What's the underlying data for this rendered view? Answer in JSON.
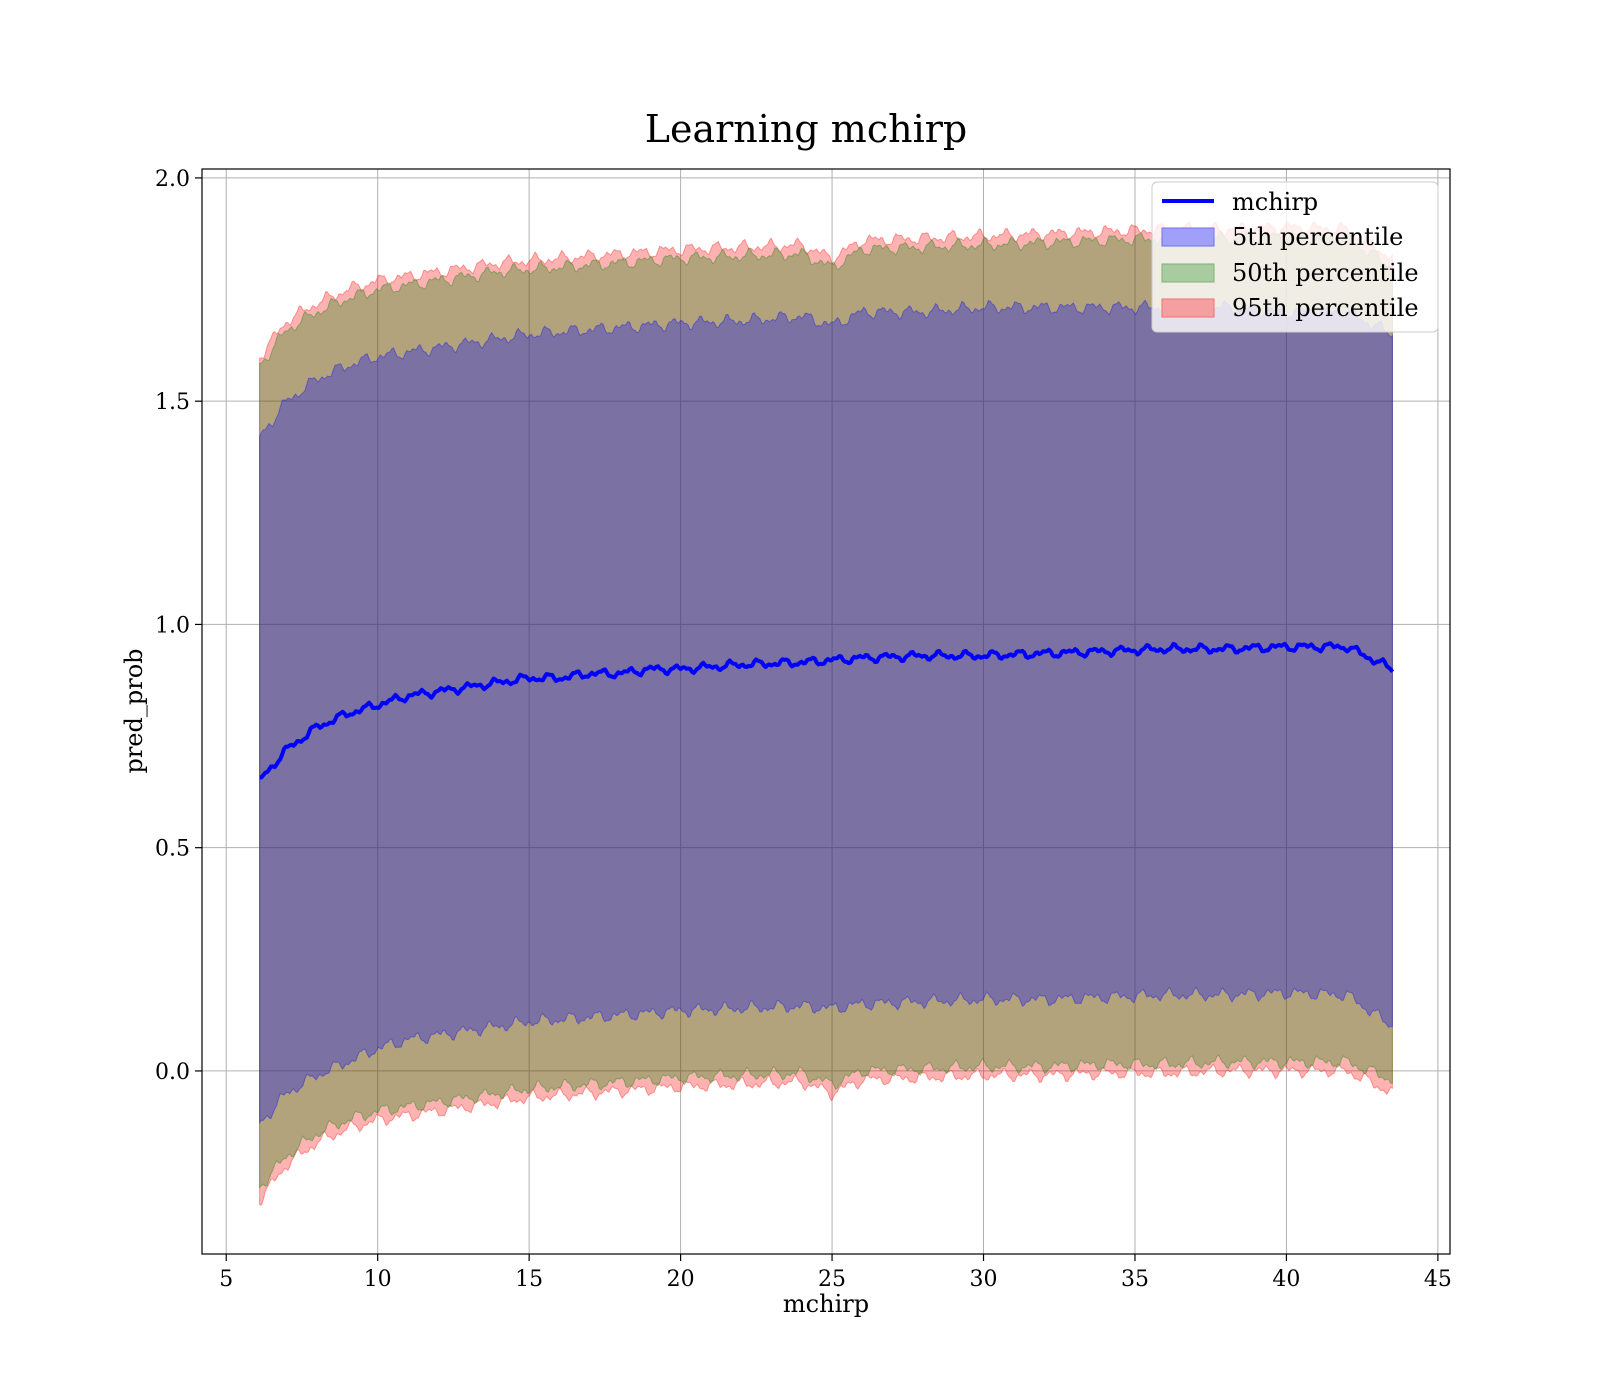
{
  "chart_data": {
    "type": "area",
    "title": "Learning mchirp",
    "xlabel": "mchirp",
    "ylabel": "pred_prob",
    "xlim": [
      4.2,
      45.4
    ],
    "ylim": [
      -0.41,
      2.02
    ],
    "xticks": [
      5,
      10,
      15,
      20,
      25,
      30,
      35,
      40,
      45
    ],
    "yticks": [
      0.0,
      0.5,
      1.0,
      1.5,
      2.0
    ],
    "xtick_labels": [
      "5",
      "10",
      "15",
      "20",
      "25",
      "30",
      "35",
      "40",
      "45"
    ],
    "ytick_labels": [
      "0.0",
      "0.5",
      "1.0",
      "1.5",
      "2.0"
    ],
    "grid": true,
    "legend_position": "top-right",
    "x_range": [
      6.1,
      43.5
    ],
    "series": [
      {
        "name": "mchirp",
        "kind": "line",
        "color": "#0000ff",
        "x": [
          6.1,
          7,
          8,
          9,
          10,
          11,
          12,
          13,
          14,
          15,
          16,
          17,
          18,
          19,
          20,
          22,
          24,
          25,
          26,
          28,
          30,
          32,
          34,
          36,
          38,
          40,
          42,
          43.5
        ],
        "y": [
          0.65,
          0.72,
          0.77,
          0.8,
          0.82,
          0.84,
          0.85,
          0.86,
          0.87,
          0.88,
          0.88,
          0.89,
          0.89,
          0.9,
          0.9,
          0.91,
          0.915,
          0.92,
          0.925,
          0.93,
          0.93,
          0.935,
          0.94,
          0.945,
          0.945,
          0.95,
          0.95,
          0.9
        ]
      },
      {
        "name": "5th percentile",
        "kind": "band",
        "color": "#0000ff",
        "x": [
          6.1,
          7,
          8,
          9,
          10,
          11,
          12,
          13,
          14,
          15,
          16,
          17,
          18,
          19,
          20,
          22,
          24,
          25,
          26,
          28,
          30,
          32,
          34,
          36,
          38,
          40,
          42,
          43.5
        ],
        "lower": [
          -0.12,
          -0.05,
          -0.01,
          0.02,
          0.05,
          0.07,
          0.08,
          0.09,
          0.1,
          0.11,
          0.115,
          0.12,
          0.125,
          0.13,
          0.135,
          0.14,
          0.145,
          0.14,
          0.15,
          0.155,
          0.16,
          0.16,
          0.165,
          0.17,
          0.17,
          0.175,
          0.17,
          0.1
        ],
        "upper": [
          1.42,
          1.5,
          1.55,
          1.58,
          1.6,
          1.61,
          1.62,
          1.63,
          1.64,
          1.65,
          1.655,
          1.66,
          1.665,
          1.67,
          1.675,
          1.68,
          1.69,
          1.67,
          1.7,
          1.7,
          1.71,
          1.71,
          1.71,
          1.71,
          1.71,
          1.7,
          1.7,
          1.65
        ]
      },
      {
        "name": "50th percentile",
        "kind": "band",
        "color": "#008000",
        "x": [
          6.1,
          7,
          8,
          9,
          10,
          11,
          12,
          13,
          14,
          15,
          16,
          17,
          18,
          19,
          20,
          22,
          24,
          25,
          26,
          28,
          30,
          32,
          34,
          36,
          38,
          40,
          42,
          43.5
        ],
        "lower": [
          -0.26,
          -0.19,
          -0.14,
          -0.11,
          -0.09,
          -0.08,
          -0.07,
          -0.06,
          -0.05,
          -0.04,
          -0.035,
          -0.03,
          -0.025,
          -0.02,
          -0.015,
          -0.01,
          -0.005,
          -0.03,
          0.0,
          0.005,
          0.01,
          0.01,
          0.015,
          0.015,
          0.02,
          0.02,
          0.02,
          -0.02
        ],
        "upper": [
          1.58,
          1.66,
          1.7,
          1.73,
          1.75,
          1.76,
          1.77,
          1.78,
          1.79,
          1.795,
          1.8,
          1.805,
          1.81,
          1.815,
          1.82,
          1.825,
          1.83,
          1.8,
          1.84,
          1.845,
          1.85,
          1.855,
          1.86,
          1.865,
          1.865,
          1.87,
          1.865,
          1.8
        ]
      },
      {
        "name": "95th percentile",
        "kind": "band",
        "color": "#ff0000",
        "x": [
          6.1,
          7,
          8,
          9,
          10,
          11,
          12,
          13,
          14,
          15,
          16,
          17,
          18,
          19,
          20,
          22,
          24,
          25,
          26,
          28,
          30,
          32,
          34,
          36,
          38,
          40,
          42,
          43.5
        ],
        "lower": [
          -0.29,
          -0.21,
          -0.16,
          -0.13,
          -0.11,
          -0.1,
          -0.09,
          -0.08,
          -0.07,
          -0.06,
          -0.055,
          -0.05,
          -0.045,
          -0.04,
          -0.035,
          -0.03,
          -0.025,
          -0.05,
          -0.02,
          -0.015,
          -0.01,
          -0.01,
          -0.005,
          -0.005,
          0.0,
          0.0,
          0.0,
          -0.05
        ],
        "upper": [
          1.6,
          1.68,
          1.72,
          1.75,
          1.77,
          1.78,
          1.79,
          1.8,
          1.81,
          1.815,
          1.82,
          1.825,
          1.83,
          1.835,
          1.84,
          1.845,
          1.85,
          1.82,
          1.86,
          1.865,
          1.87,
          1.875,
          1.88,
          1.885,
          1.885,
          1.89,
          1.885,
          1.82
        ]
      }
    ]
  },
  "colors": {
    "line": "#0000ff",
    "band_5th": "#0000ff",
    "band_50th": "#008000",
    "band_95th": "#ff0000",
    "legend_swatch_5th": "#a0a0f8",
    "legend_swatch_50th": "#a8cba0",
    "legend_swatch_95th": "#f4a0a0"
  }
}
